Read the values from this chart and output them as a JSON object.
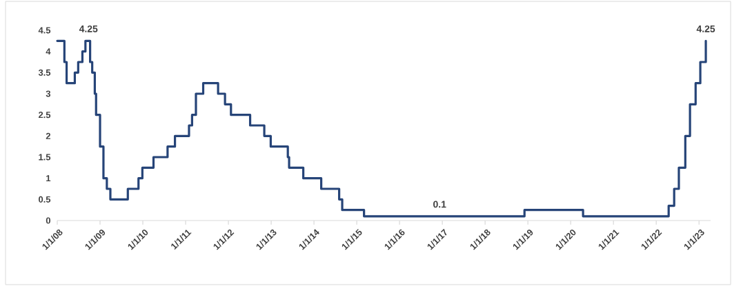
{
  "chart_data": {
    "type": "step",
    "x": [
      "2008-01-01",
      "2008-03-02",
      "2008-03-21",
      "2008-05-30",
      "2008-06-28",
      "2008-08-03",
      "2008-08-29",
      "2008-10-08",
      "2008-10-26",
      "2008-11-17",
      "2008-11-28",
      "2009-01-01",
      "2009-01-30",
      "2009-02-28",
      "2009-03-30",
      "2009-08-26",
      "2009-11-25",
      "2009-12-28",
      "2010-04-02",
      "2010-07-31",
      "2010-10-02",
      "2011-01-30",
      "2011-02-25",
      "2011-03-30",
      "2011-05-31",
      "2011-10-05",
      "2011-12-03",
      "2012-01-23",
      "2012-07-05",
      "2012-11-03",
      "2012-12-28",
      "2013-05-23",
      "2013-06-03",
      "2013-10-02",
      "2014-03-04",
      "2014-08-04",
      "2014-08-30",
      "2015-03-04",
      "2018-12-03",
      "2020-04-16",
      "2022-04-17",
      "2022-06-03",
      "2022-07-13",
      "2022-09-06",
      "2022-10-16",
      "2022-12-03",
      "2023-01-12",
      "2023-02-28"
    ],
    "values": [
      4.25,
      3.75,
      3.25,
      3.5,
      3.75,
      4.0,
      4.25,
      3.75,
      3.5,
      3.0,
      2.5,
      1.75,
      1.0,
      0.75,
      0.5,
      0.75,
      1.0,
      1.25,
      1.5,
      1.75,
      2.0,
      2.25,
      2.5,
      3.0,
      3.25,
      3.0,
      2.75,
      2.5,
      2.25,
      2.0,
      1.75,
      1.5,
      1.25,
      1.0,
      0.75,
      0.5,
      0.25,
      0.1,
      0.25,
      0.1,
      0.35,
      0.75,
      1.25,
      2.0,
      2.75,
      3.25,
      3.75,
      4.25
    ],
    "color": "#264478",
    "xlim": [
      "2008-01-01",
      "2023-04-10"
    ],
    "xticks": [
      {
        "value": "2008-01-01",
        "label": "1/1/08"
      },
      {
        "value": "2009-01-01",
        "label": "1/1/09"
      },
      {
        "value": "2010-01-01",
        "label": "1/1/10"
      },
      {
        "value": "2011-01-01",
        "label": "1/1/11"
      },
      {
        "value": "2012-01-01",
        "label": "1/1/12"
      },
      {
        "value": "2013-01-01",
        "label": "1/1/13"
      },
      {
        "value": "2014-01-01",
        "label": "1/1/14"
      },
      {
        "value": "2015-01-01",
        "label": "1/1/15"
      },
      {
        "value": "2016-01-01",
        "label": "1/1/16"
      },
      {
        "value": "2017-01-01",
        "label": "1/1/17"
      },
      {
        "value": "2018-01-01",
        "label": "1/1/18"
      },
      {
        "value": "2019-01-01",
        "label": "1/1/19"
      },
      {
        "value": "2020-01-01",
        "label": "1/1/20"
      },
      {
        "value": "2021-01-01",
        "label": "1/1/21"
      },
      {
        "value": "2022-01-01",
        "label": "1/1/22"
      },
      {
        "value": "2023-01-01",
        "label": "1/1/23"
      }
    ],
    "ylim": [
      0,
      4.5
    ],
    "yticks": [
      0,
      0.5,
      1,
      1.5,
      2,
      2.5,
      3,
      3.5,
      4,
      4.5
    ],
    "grid": false,
    "annotations": [
      {
        "text": "4.25",
        "x": "2008-09-24",
        "y": 4.25
      },
      {
        "text": "0.1",
        "x": "2016-12-09",
        "y": 0.1
      },
      {
        "text": "4.25",
        "x": "2023-02-28",
        "y": 4.25
      }
    ]
  }
}
